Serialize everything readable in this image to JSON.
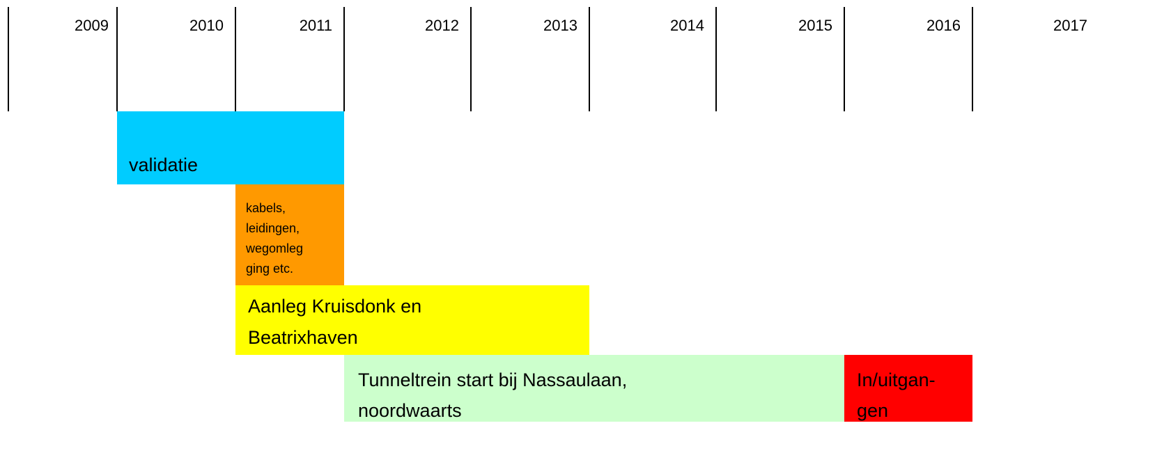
{
  "timeline": {
    "years": [
      "2009",
      "2010",
      "2011",
      "2012",
      "2013",
      "2014",
      "2015",
      "2016",
      "2017"
    ]
  },
  "tasks": [
    {
      "lines": [
        "validatie"
      ]
    },
    {
      "lines": [
        "kabels,",
        "leidingen,",
        "wegomleg",
        "ging etc."
      ]
    },
    {
      "lines": [
        "Aanleg Kruisdonk en",
        "Beatrixhaven"
      ]
    },
    {
      "lines": [
        "Tunneltrein start bij Nassaulaan,",
        "noordwaarts"
      ]
    },
    {
      "lines": [
        "In/uitgan-",
        "gen"
      ]
    }
  ]
}
